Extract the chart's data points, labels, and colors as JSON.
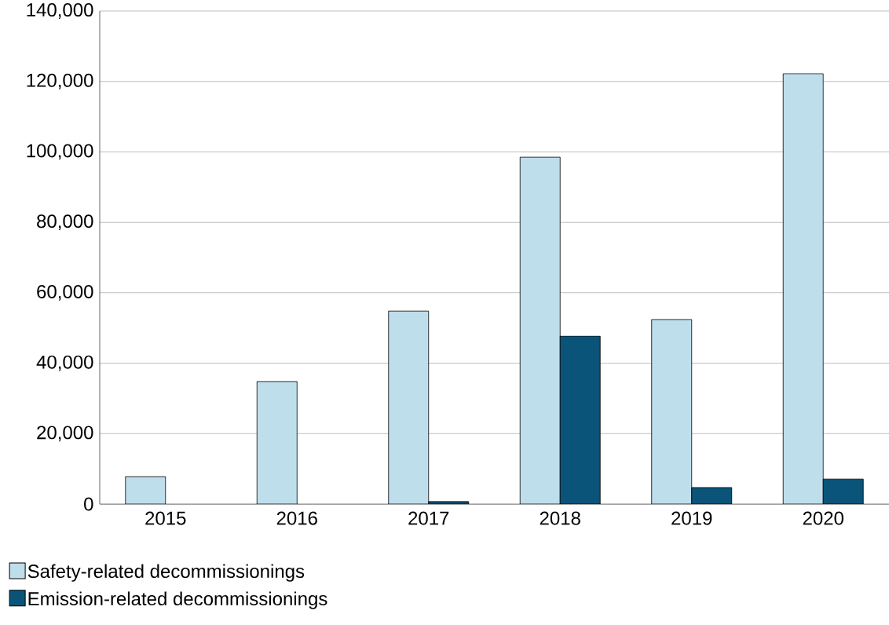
{
  "chart_data": {
    "type": "bar",
    "categories": [
      "2015",
      "2016",
      "2017",
      "2018",
      "2019",
      "2020"
    ],
    "series": [
      {
        "name": "Safety-related decommissionings",
        "color": "#bedeec",
        "values": [
          7800,
          34800,
          54800,
          98500,
          52400,
          122200
        ]
      },
      {
        "name": "Emission-related decommissionings",
        "color": "#0b5479",
        "values": [
          null,
          null,
          700,
          47700,
          4700,
          7100
        ]
      }
    ],
    "ylim": [
      0,
      140000
    ],
    "yticks": [
      {
        "value": 0,
        "label": "0"
      },
      {
        "value": 20000,
        "label": "20,000"
      },
      {
        "value": 40000,
        "label": "40,000"
      },
      {
        "value": 60000,
        "label": "60,000"
      },
      {
        "value": 80000,
        "label": "80,000"
      },
      {
        "value": 100000,
        "label": "100,000"
      },
      {
        "value": 120000,
        "label": "120,000"
      },
      {
        "value": 140000,
        "label": "140,000"
      }
    ],
    "grid": "y",
    "legend": "bottom"
  }
}
